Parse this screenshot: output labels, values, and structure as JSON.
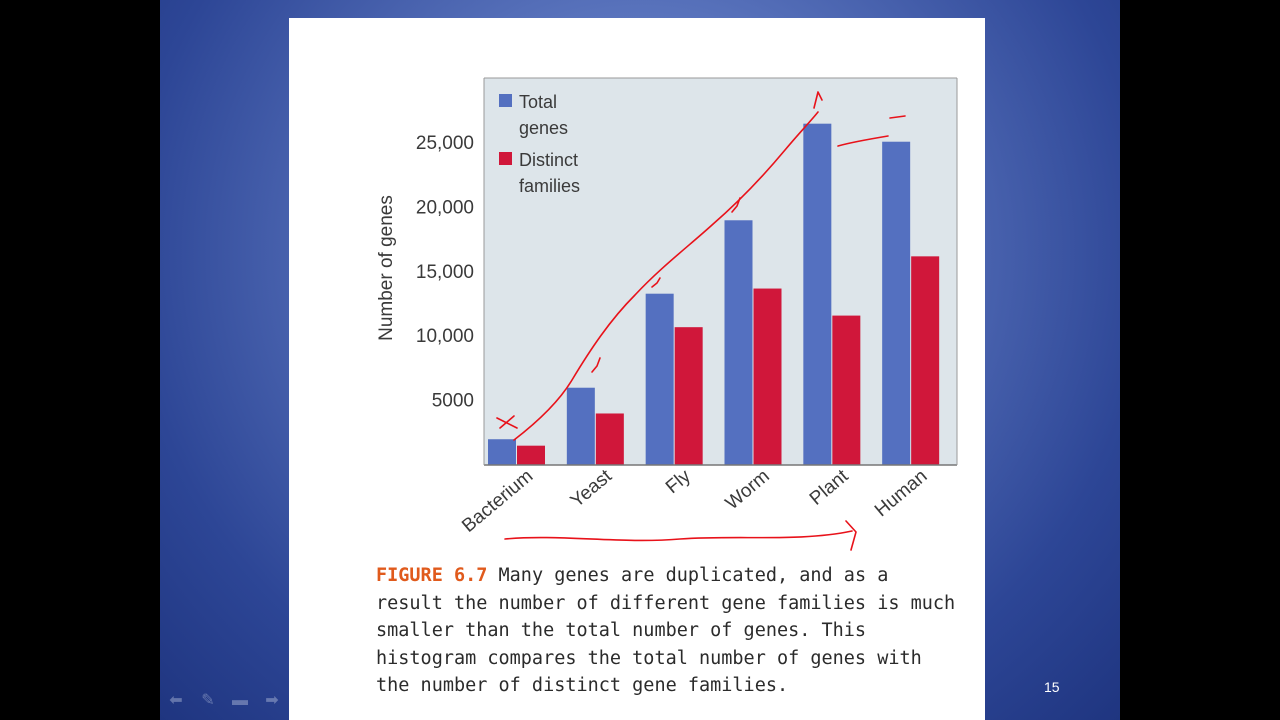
{
  "slide": {
    "page_number": "15",
    "controls": [
      "prev-arrow-icon",
      "pen-icon",
      "menu-icon",
      "next-arrow-icon"
    ]
  },
  "chart_data": {
    "type": "bar",
    "categories": [
      "Bacterium",
      "Yeast",
      "Fly",
      "Worm",
      "Plant",
      "Human"
    ],
    "series": [
      {
        "name": "Total genes",
        "color": "#5470c0",
        "values": [
          2000,
          6000,
          13300,
          19000,
          26500,
          25100
        ]
      },
      {
        "name": "Distinct families",
        "color": "#d0173a",
        "values": [
          1500,
          4000,
          10700,
          13700,
          11600,
          16200
        ]
      }
    ],
    "legend_lines": [
      [
        "Total",
        "genes"
      ],
      [
        "Distinct",
        "families"
      ]
    ],
    "ylabel": "Number of genes",
    "yticks": [
      {
        "value": 5000,
        "label": "5000"
      },
      {
        "value": 10000,
        "label": "10,000"
      },
      {
        "value": 15000,
        "label": "15,000"
      },
      {
        "value": 20000,
        "label": "20,000"
      },
      {
        "value": 25000,
        "label": "25,000"
      }
    ],
    "ylim": [
      0,
      30000
    ],
    "legend_position": "top-left",
    "grid": false,
    "plot_background": "#dde5ea"
  },
  "caption": {
    "figure_label": "FIGURE 6.7",
    "text": "Many genes are duplicated, and as a result the number of different gene families is much smaller than the total number of genes. This histogram compares the total number of genes with the number of distinct gene families."
  }
}
